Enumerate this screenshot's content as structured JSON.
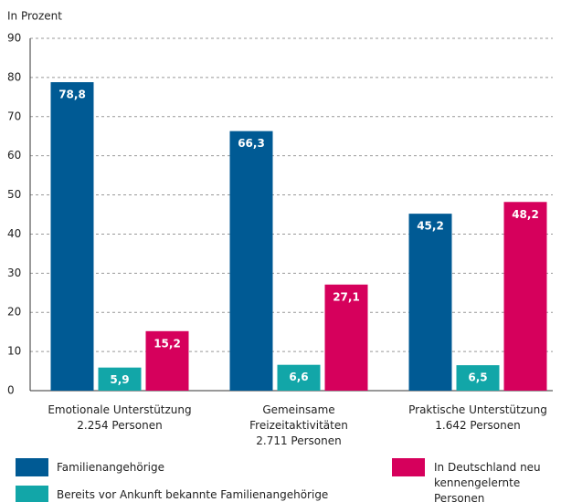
{
  "chart_data": {
    "type": "bar",
    "subtitle": "In Prozent",
    "categories": [
      "Emotionale Unterstützung\n2.254 Personen",
      "Gemeinsame\nFreizeitaktivitäten\n2.711 Personen",
      "Praktische Unterstützung\n1.642 Personen"
    ],
    "series": [
      {
        "name": "Familienangehörige",
        "color": "#005a94",
        "values": [
          78.8,
          66.3,
          45.2
        ],
        "value_labels": [
          "78,8",
          "66,3",
          "45,2"
        ]
      },
      {
        "name": "Bereits vor Ankunft bekannte Familienangehörige",
        "color": "#12a6a8",
        "values": [
          5.9,
          6.6,
          6.5
        ],
        "value_labels": [
          "5,9",
          "6,6",
          "6,5"
        ]
      },
      {
        "name": "In Deutschland neu kennengelernte Personen",
        "color": "#d6005c",
        "values": [
          15.2,
          27.1,
          48.2
        ],
        "value_labels": [
          "15,2",
          "27,1",
          "48,2"
        ]
      }
    ],
    "ylim": [
      0,
      90
    ],
    "yticks": [
      0,
      10,
      20,
      30,
      40,
      50,
      60,
      70,
      80,
      90
    ],
    "grid": true
  }
}
